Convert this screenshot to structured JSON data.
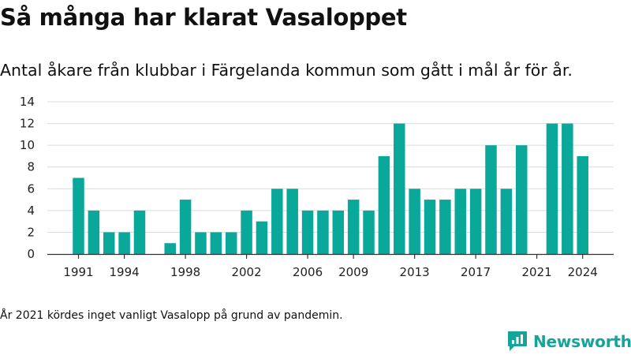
{
  "title": "Så många har klarat Vasaloppet",
  "subtitle": "Antal åkare från klubbar i Färgelanda kommun som gått i mål år för år.",
  "footnote": "År 2021 kördes inget vanligt Vasalopp på grund av pandemin.",
  "brand": {
    "name": "Newsworthy",
    "icon": "newsworthy-logo-icon",
    "color": "#16a49a"
  },
  "chart_data": {
    "type": "bar",
    "title": "Så många har klarat Vasaloppet",
    "xlabel": "",
    "ylabel": "",
    "x": [
      1991,
      1992,
      1993,
      1994,
      1995,
      1996,
      1997,
      1998,
      1999,
      2000,
      2001,
      2002,
      2003,
      2004,
      2005,
      2006,
      2007,
      2008,
      2009,
      2010,
      2011,
      2012,
      2013,
      2014,
      2015,
      2016,
      2017,
      2018,
      2019,
      2020,
      2021,
      2022,
      2023,
      2024
    ],
    "values": [
      7,
      4,
      2,
      2,
      4,
      0,
      1,
      5,
      2,
      2,
      2,
      4,
      3,
      6,
      6,
      4,
      4,
      4,
      5,
      4,
      9,
      12,
      6,
      5,
      5,
      6,
      6,
      10,
      6,
      10,
      0,
      12,
      12,
      9
    ],
    "x_ticks": [
      1991,
      1994,
      1998,
      2002,
      2006,
      2009,
      2013,
      2017,
      2021,
      2024
    ],
    "y_ticks": [
      0,
      2,
      4,
      6,
      8,
      10,
      12,
      14
    ],
    "ylim": [
      0,
      14
    ],
    "bar_color": "#0aa89a",
    "grid": true,
    "legend": "none"
  }
}
